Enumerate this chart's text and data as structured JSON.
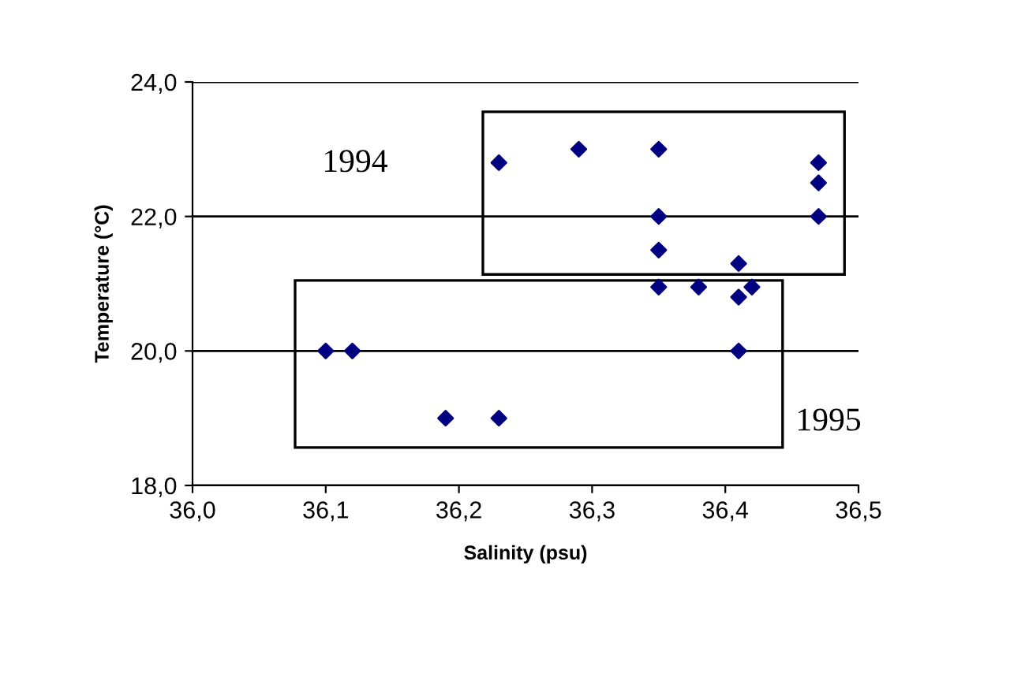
{
  "chart_data": {
    "type": "scatter",
    "xlabel": "Salinity (psu)",
    "ylabel": "Temperature (°C)",
    "x": [
      36.23,
      36.29,
      36.35,
      36.47,
      36.47,
      36.35,
      36.47,
      36.35,
      36.41,
      36.35,
      36.38,
      36.41,
      36.42,
      36.1,
      36.12,
      36.41,
      36.19,
      36.23
    ],
    "values": [
      22.8,
      23.0,
      23.0,
      22.8,
      22.5,
      22.0,
      22.0,
      21.5,
      21.3,
      20.95,
      20.95,
      20.8,
      20.95,
      20.0,
      20.0,
      20.0,
      19.0,
      19.0
    ],
    "color": "#000080",
    "marker": "diamond",
    "grid": "y",
    "xlim": [
      36.0,
      36.5
    ],
    "ylim": [
      18.0,
      24.0
    ],
    "xticks": [
      {
        "value": 36.0,
        "label": "36,0"
      },
      {
        "value": 36.1,
        "label": "36,1"
      },
      {
        "value": 36.2,
        "label": "36,2"
      },
      {
        "value": 36.3,
        "label": "36,3"
      },
      {
        "value": 36.4,
        "label": "36,4"
      },
      {
        "value": 36.5,
        "label": "36,5"
      }
    ],
    "yticks": [
      {
        "value": 18.0,
        "label": "18,0"
      },
      {
        "value": 20.0,
        "label": "20,0"
      },
      {
        "value": 22.0,
        "label": "22,0"
      },
      {
        "value": 24.0,
        "label": "24,0"
      }
    ],
    "annotations": [
      "1994",
      "1995"
    ]
  }
}
